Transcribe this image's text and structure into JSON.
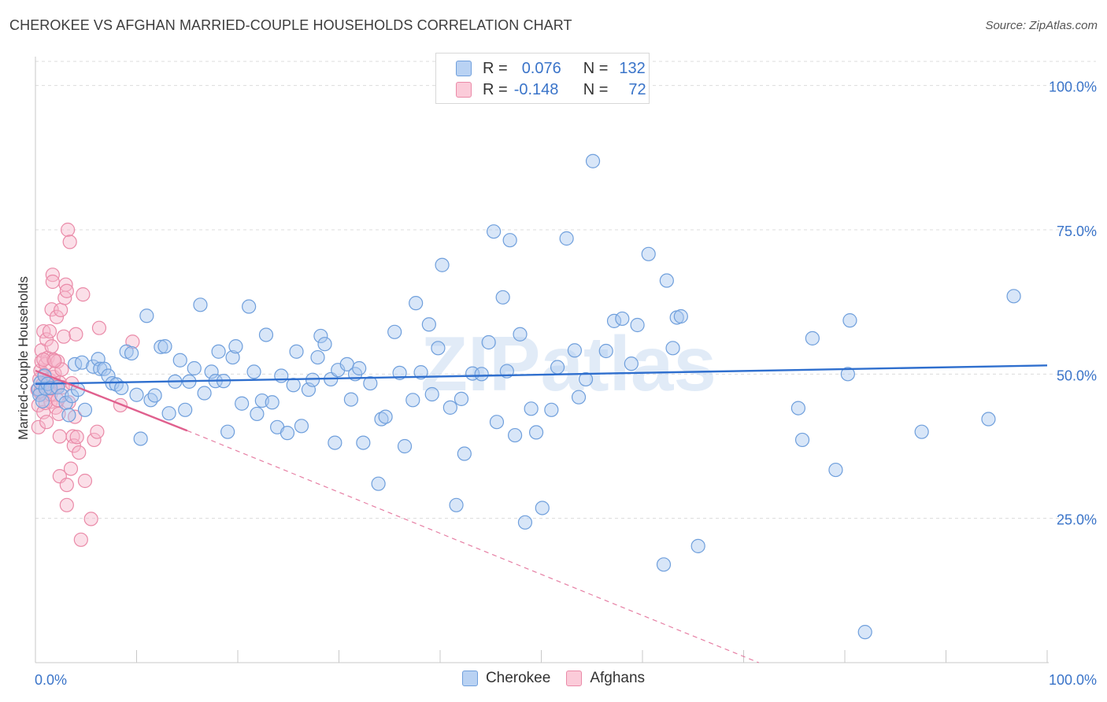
{
  "title": "CHEROKEE VS AFGHAN MARRIED-COUPLE HOUSEHOLDS CORRELATION CHART",
  "source": "Source: ZipAtlas.com",
  "watermark": "ZIPatlas",
  "legend_top": {
    "rows": [
      {
        "r_label": "R =",
        "r_value": "0.076",
        "n_label": "N =",
        "n_value": "132"
      },
      {
        "r_label": "R =",
        "r_value": "-0.148",
        "n_label": "N =",
        "n_value": "72"
      }
    ]
  },
  "colors": {
    "cherokee_fill": "#a9c8f0",
    "cherokee_stroke": "#6f9fdc",
    "cherokee_line": "#2f6fce",
    "afghan_fill": "#f7b8cb",
    "afghan_stroke": "#ea8aa8",
    "afghan_line": "#e0608e",
    "axis_text": "#3a74c9",
    "grid": "#dcdcdc"
  },
  "chart_data": {
    "type": "scatter",
    "title": "CHEROKEE VS AFGHAN MARRIED-COUPLE HOUSEHOLDS CORRELATION CHART",
    "xlabel": "",
    "ylabel": "Married-couple Households",
    "xlim": [
      0,
      100
    ],
    "ylim": [
      0,
      105
    ],
    "x_tick_labels": [
      "0.0%",
      "100.0%"
    ],
    "y_ticks": [
      25,
      50,
      75,
      100
    ],
    "y_tick_labels": [
      "25.0%",
      "50.0%",
      "75.0%",
      "100.0%"
    ],
    "grid": true,
    "legend_position": "bottom",
    "series": [
      {
        "name": "Cherokee",
        "r": 0.076,
        "n": 132,
        "trend": {
          "x": [
            0,
            100
          ],
          "y": [
            48.3,
            51.5
          ],
          "style": "solid"
        },
        "points": [
          [
            0.3,
            47.4
          ],
          [
            0.4,
            46.4
          ],
          [
            0.5,
            48.5
          ],
          [
            0.7,
            45.3
          ],
          [
            0.9,
            49.7
          ],
          [
            1.0,
            47.5
          ],
          [
            1.2,
            48.3
          ],
          [
            1.5,
            47.6
          ],
          [
            2.2,
            47.7
          ],
          [
            2.6,
            46.3
          ],
          [
            3.0,
            45.0
          ],
          [
            3.3,
            42.9
          ],
          [
            3.6,
            46.2
          ],
          [
            3.9,
            51.7
          ],
          [
            4.2,
            47.3
          ],
          [
            4.6,
            52.0
          ],
          [
            4.9,
            43.8
          ],
          [
            5.7,
            51.3
          ],
          [
            6.2,
            52.6
          ],
          [
            6.4,
            50.9
          ],
          [
            6.8,
            50.9
          ],
          [
            7.2,
            49.7
          ],
          [
            7.6,
            48.4
          ],
          [
            8.0,
            48.2
          ],
          [
            8.5,
            47.6
          ],
          [
            9.0,
            53.9
          ],
          [
            9.5,
            53.6
          ],
          [
            10.0,
            46.4
          ],
          [
            10.4,
            38.8
          ],
          [
            11.0,
            60.1
          ],
          [
            11.4,
            45.5
          ],
          [
            11.8,
            46.3
          ],
          [
            12.4,
            54.7
          ],
          [
            12.8,
            54.8
          ],
          [
            13.2,
            43.2
          ],
          [
            13.8,
            48.7
          ],
          [
            14.3,
            52.4
          ],
          [
            14.8,
            43.8
          ],
          [
            15.2,
            48.7
          ],
          [
            15.7,
            51.0
          ],
          [
            16.3,
            62.0
          ],
          [
            16.7,
            46.7
          ],
          [
            17.4,
            50.4
          ],
          [
            17.8,
            48.8
          ],
          [
            18.1,
            53.9
          ],
          [
            18.6,
            48.8
          ],
          [
            19.0,
            40.0
          ],
          [
            19.5,
            52.9
          ],
          [
            19.8,
            54.8
          ],
          [
            20.4,
            44.9
          ],
          [
            21.1,
            61.7
          ],
          [
            21.6,
            50.4
          ],
          [
            21.9,
            43.1
          ],
          [
            22.4,
            45.4
          ],
          [
            22.8,
            56.8
          ],
          [
            23.4,
            45.1
          ],
          [
            23.9,
            40.8
          ],
          [
            24.3,
            49.7
          ],
          [
            24.9,
            39.8
          ],
          [
            25.5,
            48.1
          ],
          [
            25.8,
            53.9
          ],
          [
            26.3,
            41.0
          ],
          [
            27.0,
            47.3
          ],
          [
            27.4,
            49.0
          ],
          [
            27.9,
            52.9
          ],
          [
            28.2,
            56.6
          ],
          [
            28.6,
            55.2
          ],
          [
            29.2,
            49.1
          ],
          [
            29.6,
            38.1
          ],
          [
            29.9,
            50.7
          ],
          [
            30.8,
            51.7
          ],
          [
            31.2,
            45.6
          ],
          [
            31.6,
            50.0
          ],
          [
            32.0,
            51.0
          ],
          [
            32.4,
            38.1
          ],
          [
            33.1,
            48.4
          ],
          [
            33.9,
            31.0
          ],
          [
            34.2,
            42.2
          ],
          [
            34.6,
            42.6
          ],
          [
            35.5,
            57.3
          ],
          [
            36.0,
            50.2
          ],
          [
            36.5,
            37.5
          ],
          [
            37.3,
            45.5
          ],
          [
            37.6,
            62.3
          ],
          [
            38.1,
            50.3
          ],
          [
            38.9,
            58.6
          ],
          [
            39.2,
            46.5
          ],
          [
            39.8,
            54.5
          ],
          [
            40.2,
            68.9
          ],
          [
            41.0,
            44.2
          ],
          [
            41.6,
            27.3
          ],
          [
            42.1,
            45.7
          ],
          [
            42.4,
            36.2
          ],
          [
            43.2,
            50.1
          ],
          [
            44.1,
            50.0
          ],
          [
            44.8,
            55.5
          ],
          [
            45.3,
            74.7
          ],
          [
            45.6,
            41.7
          ],
          [
            46.2,
            63.3
          ],
          [
            46.6,
            50.5
          ],
          [
            46.9,
            73.2
          ],
          [
            47.4,
            39.4
          ],
          [
            47.9,
            56.9
          ],
          [
            48.4,
            24.3
          ],
          [
            49.0,
            44.0
          ],
          [
            49.5,
            39.9
          ],
          [
            50.1,
            26.8
          ],
          [
            51.0,
            43.8
          ],
          [
            51.6,
            51.2
          ],
          [
            52.5,
            73.5
          ],
          [
            53.3,
            54.1
          ],
          [
            53.7,
            46.0
          ],
          [
            54.4,
            49.1
          ],
          [
            55.1,
            86.9
          ],
          [
            56.4,
            54.0
          ],
          [
            57.2,
            59.2
          ],
          [
            58.0,
            59.6
          ],
          [
            58.9,
            51.8
          ],
          [
            59.5,
            58.5
          ],
          [
            60.6,
            70.8
          ],
          [
            62.1,
            17.0
          ],
          [
            62.4,
            66.2
          ],
          [
            63.0,
            54.5
          ],
          [
            63.4,
            59.8
          ],
          [
            63.8,
            60.0
          ],
          [
            65.5,
            20.2
          ],
          [
            75.4,
            44.1
          ],
          [
            75.8,
            38.6
          ],
          [
            76.8,
            56.2
          ],
          [
            79.1,
            33.4
          ],
          [
            80.3,
            50.0
          ],
          [
            80.5,
            59.3
          ],
          [
            87.6,
            40.0
          ],
          [
            94.2,
            42.2
          ],
          [
            96.7,
            63.5
          ],
          [
            82.0,
            5.3
          ]
        ]
      },
      {
        "name": "Afghans",
        "r": -0.148,
        "n": 72,
        "trend": {
          "x": [
            0,
            15
          ],
          "y": [
            50.6,
            40.2
          ],
          "style": "solid"
        },
        "trend_extended": {
          "x": [
            15,
            71.5
          ],
          "y": [
            40.2,
            0.0
          ],
          "style": "dashed"
        },
        "points": [
          [
            0.2,
            47.3
          ],
          [
            0.3,
            44.6
          ],
          [
            0.3,
            40.8
          ],
          [
            0.4,
            49.1
          ],
          [
            0.5,
            50.6
          ],
          [
            0.5,
            46.7
          ],
          [
            0.6,
            52.2
          ],
          [
            0.6,
            54.1
          ],
          [
            0.7,
            48.2
          ],
          [
            0.8,
            43.4
          ],
          [
            0.8,
            57.4
          ],
          [
            0.9,
            49.9
          ],
          [
            1.0,
            46.4
          ],
          [
            1.0,
            51.7
          ],
          [
            1.1,
            41.7
          ],
          [
            1.1,
            56.0
          ],
          [
            1.2,
            52.8
          ],
          [
            1.2,
            47.6
          ],
          [
            1.3,
            49.1
          ],
          [
            1.4,
            57.4
          ],
          [
            1.5,
            45.2
          ],
          [
            1.5,
            48.9
          ],
          [
            1.6,
            61.2
          ],
          [
            1.6,
            54.8
          ],
          [
            1.7,
            67.2
          ],
          [
            1.7,
            66.0
          ],
          [
            1.8,
            52.5
          ],
          [
            1.8,
            49.5
          ],
          [
            1.9,
            50.1
          ],
          [
            2.0,
            47.7
          ],
          [
            2.0,
            44.2
          ],
          [
            2.1,
            59.9
          ],
          [
            2.2,
            52.2
          ],
          [
            2.3,
            43.1
          ],
          [
            2.4,
            48.5
          ],
          [
            2.4,
            39.2
          ],
          [
            2.4,
            32.3
          ],
          [
            2.5,
            61.1
          ],
          [
            2.6,
            50.8
          ],
          [
            2.7,
            47.7
          ],
          [
            2.8,
            56.5
          ],
          [
            2.9,
            63.2
          ],
          [
            3.0,
            65.5
          ],
          [
            3.1,
            64.4
          ],
          [
            3.1,
            30.8
          ],
          [
            3.1,
            27.3
          ],
          [
            3.2,
            75.0
          ],
          [
            3.3,
            45.1
          ],
          [
            3.4,
            72.9
          ],
          [
            3.5,
            33.6
          ],
          [
            3.6,
            48.4
          ],
          [
            3.7,
            39.2
          ],
          [
            3.8,
            37.6
          ],
          [
            3.9,
            42.6
          ],
          [
            4.0,
            56.9
          ],
          [
            4.1,
            39.1
          ],
          [
            4.3,
            36.4
          ],
          [
            4.5,
            21.3
          ],
          [
            4.7,
            63.8
          ],
          [
            4.9,
            31.5
          ],
          [
            5.5,
            24.9
          ],
          [
            5.8,
            38.6
          ],
          [
            6.1,
            40.0
          ],
          [
            6.3,
            58.0
          ],
          [
            8.4,
            44.6
          ],
          [
            9.6,
            55.6
          ],
          [
            0.5,
            47.0
          ],
          [
            1.0,
            45.0
          ],
          [
            1.5,
            46.5
          ],
          [
            2.2,
            45.5
          ],
          [
            0.8,
            52.5
          ],
          [
            1.9,
            52.3
          ]
        ]
      }
    ]
  }
}
